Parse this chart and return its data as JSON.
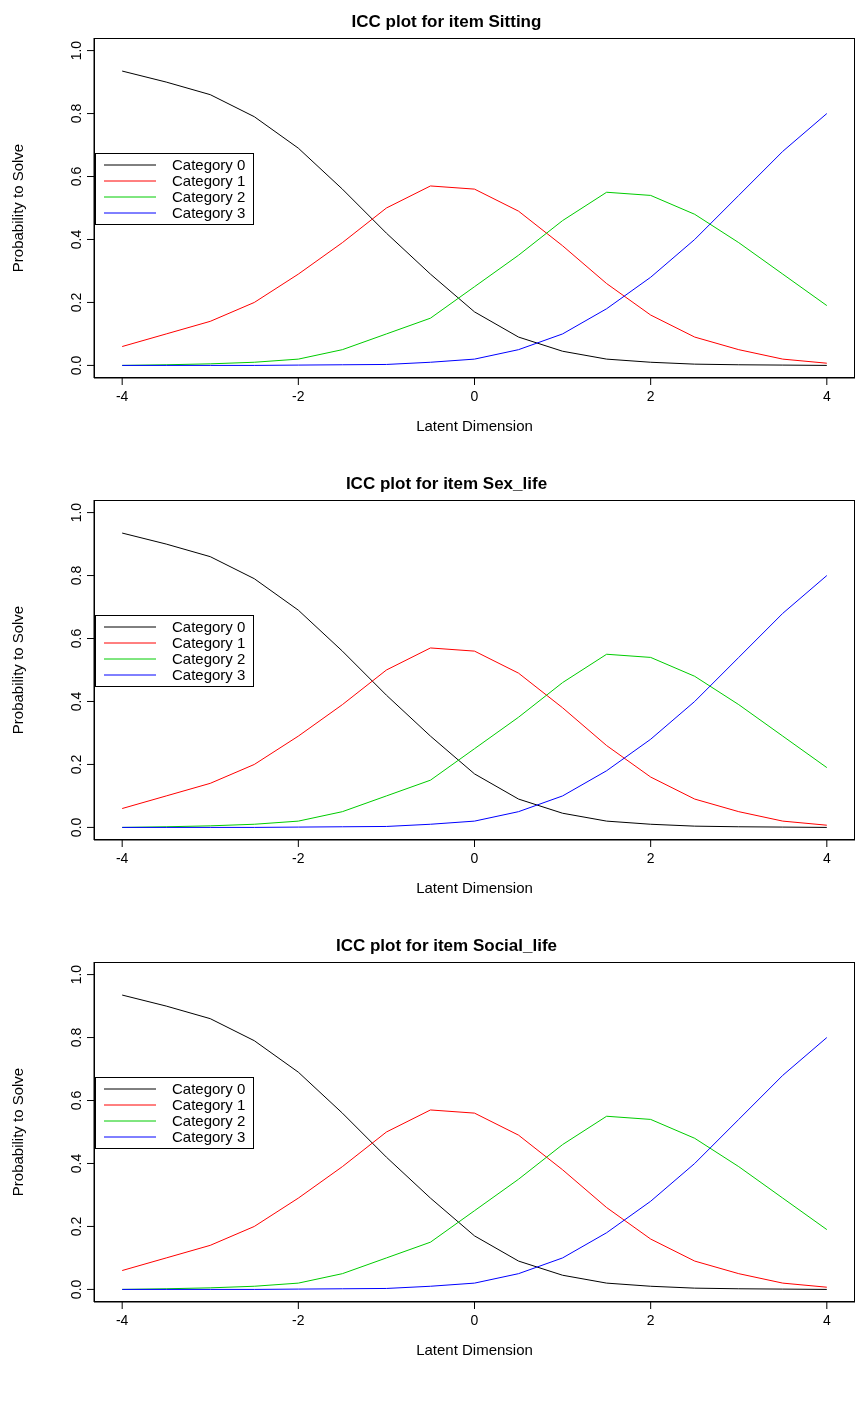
{
  "chart_data": [
    {
      "type": "line",
      "title": "ICC plot for item Sitting",
      "xlabel": "Latent Dimension",
      "ylabel": "Probability to Solve",
      "x": [
        -4,
        -3.5,
        -3,
        -2.5,
        -2,
        -1.5,
        -1,
        -0.5,
        0,
        0.5,
        1,
        1.5,
        2,
        2.5,
        3,
        3.5,
        4
      ],
      "xlim": [
        -4.32,
        4.32
      ],
      "xticks": [
        -4,
        -2,
        0,
        2,
        4
      ],
      "ylim": [
        -0.04,
        1.04
      ],
      "yticks": [
        {
          "value": 0,
          "label": "0.0"
        },
        {
          "value": 0.2,
          "label": "0.2"
        },
        {
          "value": 0.4,
          "label": "0.4"
        },
        {
          "value": 0.6,
          "label": "0.6"
        },
        {
          "value": 0.8,
          "label": "0.8"
        },
        {
          "value": 1,
          "label": "1.0"
        }
      ],
      "legend": "left",
      "marker": "none",
      "line_style": "solid",
      "grid": false,
      "series": [
        {
          "name": "Category 0",
          "color": "#000000",
          "values": [
            0.935,
            0.9,
            0.86,
            0.79,
            0.69,
            0.56,
            0.42,
            0.29,
            0.17,
            0.09,
            0.045,
            0.02,
            0.01,
            0.004,
            0.002,
            0.001,
            0.0
          ]
        },
        {
          "name": "Category 1",
          "color": "#ff0000",
          "values": [
            0.06,
            0.1,
            0.14,
            0.2,
            0.29,
            0.39,
            0.5,
            0.57,
            0.56,
            0.49,
            0.38,
            0.26,
            0.16,
            0.09,
            0.05,
            0.02,
            0.007
          ]
        },
        {
          "name": "Category 2",
          "color": "#00cc00",
          "values": [
            0.0,
            0.002,
            0.005,
            0.01,
            0.02,
            0.05,
            0.1,
            0.15,
            0.25,
            0.35,
            0.46,
            0.55,
            0.54,
            0.48,
            0.39,
            0.29,
            0.19
          ]
        },
        {
          "name": "Category 3",
          "color": "#0000ff",
          "values": [
            0.0,
            0.0,
            0.0,
            0.0,
            0.001,
            0.002,
            0.003,
            0.01,
            0.02,
            0.05,
            0.1,
            0.18,
            0.28,
            0.4,
            0.54,
            0.68,
            0.8
          ]
        }
      ]
    },
    {
      "type": "line",
      "title": "ICC plot for item Sex_life",
      "xlabel": "Latent Dimension",
      "ylabel": "Probability to Solve",
      "x": [
        -4,
        -3.5,
        -3,
        -2.5,
        -2,
        -1.5,
        -1,
        -0.5,
        0,
        0.5,
        1,
        1.5,
        2,
        2.5,
        3,
        3.5,
        4
      ],
      "xlim": [
        -4.32,
        4.32
      ],
      "xticks": [
        -4,
        -2,
        0,
        2,
        4
      ],
      "ylim": [
        -0.04,
        1.04
      ],
      "yticks": [
        {
          "value": 0,
          "label": "0.0"
        },
        {
          "value": 0.2,
          "label": "0.2"
        },
        {
          "value": 0.4,
          "label": "0.4"
        },
        {
          "value": 0.6,
          "label": "0.6"
        },
        {
          "value": 0.8,
          "label": "0.8"
        },
        {
          "value": 1,
          "label": "1.0"
        }
      ],
      "legend": "left",
      "marker": "none",
      "line_style": "solid",
      "grid": false,
      "series": [
        {
          "name": "Category 0",
          "color": "#000000",
          "values": [
            0.935,
            0.9,
            0.86,
            0.79,
            0.69,
            0.56,
            0.42,
            0.29,
            0.17,
            0.09,
            0.045,
            0.02,
            0.01,
            0.004,
            0.002,
            0.001,
            0.0
          ]
        },
        {
          "name": "Category 1",
          "color": "#ff0000",
          "values": [
            0.06,
            0.1,
            0.14,
            0.2,
            0.29,
            0.39,
            0.5,
            0.57,
            0.56,
            0.49,
            0.38,
            0.26,
            0.16,
            0.09,
            0.05,
            0.02,
            0.007
          ]
        },
        {
          "name": "Category 2",
          "color": "#00cc00",
          "values": [
            0.0,
            0.002,
            0.005,
            0.01,
            0.02,
            0.05,
            0.1,
            0.15,
            0.25,
            0.35,
            0.46,
            0.55,
            0.54,
            0.48,
            0.39,
            0.29,
            0.19
          ]
        },
        {
          "name": "Category 3",
          "color": "#0000ff",
          "values": [
            0.0,
            0.0,
            0.0,
            0.0,
            0.001,
            0.002,
            0.003,
            0.01,
            0.02,
            0.05,
            0.1,
            0.18,
            0.28,
            0.4,
            0.54,
            0.68,
            0.8
          ]
        }
      ]
    },
    {
      "type": "line",
      "title": "ICC plot for item Social_life",
      "xlabel": "Latent Dimension",
      "ylabel": "Probability to Solve",
      "x": [
        -4,
        -3.5,
        -3,
        -2.5,
        -2,
        -1.5,
        -1,
        -0.5,
        0,
        0.5,
        1,
        1.5,
        2,
        2.5,
        3,
        3.5,
        4
      ],
      "xlim": [
        -4.32,
        4.32
      ],
      "xticks": [
        -4,
        -2,
        0,
        2,
        4
      ],
      "ylim": [
        -0.04,
        1.04
      ],
      "yticks": [
        {
          "value": 0,
          "label": "0.0"
        },
        {
          "value": 0.2,
          "label": "0.2"
        },
        {
          "value": 0.4,
          "label": "0.4"
        },
        {
          "value": 0.6,
          "label": "0.6"
        },
        {
          "value": 0.8,
          "label": "0.8"
        },
        {
          "value": 1,
          "label": "1.0"
        }
      ],
      "legend": "left",
      "marker": "none",
      "line_style": "solid",
      "grid": false,
      "series": [
        {
          "name": "Category 0",
          "color": "#000000",
          "values": [
            0.935,
            0.9,
            0.86,
            0.79,
            0.69,
            0.56,
            0.42,
            0.29,
            0.17,
            0.09,
            0.045,
            0.02,
            0.01,
            0.004,
            0.002,
            0.001,
            0.0
          ]
        },
        {
          "name": "Category 1",
          "color": "#ff0000",
          "values": [
            0.06,
            0.1,
            0.14,
            0.2,
            0.29,
            0.39,
            0.5,
            0.57,
            0.56,
            0.49,
            0.38,
            0.26,
            0.16,
            0.09,
            0.05,
            0.02,
            0.007
          ]
        },
        {
          "name": "Category 2",
          "color": "#00cc00",
          "values": [
            0.0,
            0.002,
            0.005,
            0.01,
            0.02,
            0.05,
            0.1,
            0.15,
            0.25,
            0.35,
            0.46,
            0.55,
            0.54,
            0.48,
            0.39,
            0.29,
            0.19
          ]
        },
        {
          "name": "Category 3",
          "color": "#0000ff",
          "values": [
            0.0,
            0.0,
            0.0,
            0.0,
            0.001,
            0.002,
            0.003,
            0.01,
            0.02,
            0.05,
            0.1,
            0.18,
            0.28,
            0.4,
            0.54,
            0.68,
            0.8
          ]
        }
      ]
    }
  ]
}
